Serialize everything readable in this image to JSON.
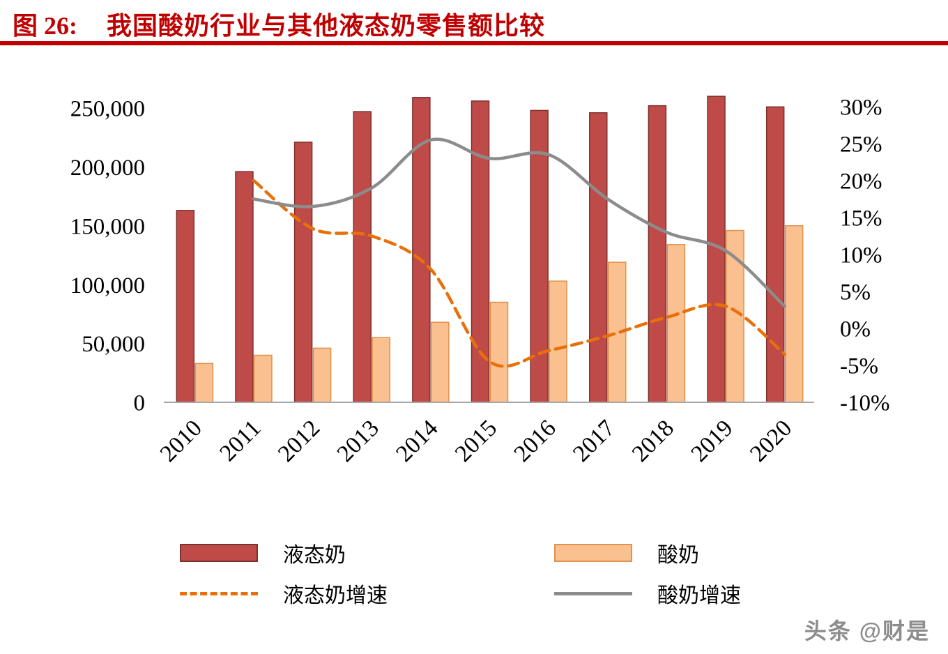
{
  "header": {
    "figure_label": "图 26:",
    "title": "我国酸奶行业与其他液态奶零售额比较"
  },
  "chart_data": {
    "type": "combo-bar-line",
    "title": "我国酸奶行业与其他液态奶零售额比较",
    "categories": [
      "2010",
      "2011",
      "2012",
      "2013",
      "2014",
      "2015",
      "2016",
      "2017",
      "2018",
      "2019",
      "2020"
    ],
    "left_axis": {
      "min": 0,
      "max": 250000,
      "tick_values": [
        0,
        50000,
        100000,
        150000,
        200000,
        250000
      ],
      "tick_labels": [
        "0",
        "50,000",
        "100,000",
        "150,000",
        "200,000",
        "250,000"
      ]
    },
    "right_axis": {
      "min": -10,
      "max": 30,
      "tick_values": [
        -10,
        -5,
        0,
        5,
        10,
        15,
        20,
        25,
        30
      ],
      "tick_labels": [
        "-10%",
        "-5%",
        "0%",
        "5%",
        "10%",
        "15%",
        "20%",
        "25%",
        "30%"
      ]
    },
    "bar_series": [
      {
        "name": "液态奶",
        "axis": "left",
        "color": "#BE4B48",
        "border_color": "#7E302C",
        "values": [
          163000,
          196000,
          221000,
          247000,
          259000,
          256000,
          248000,
          246000,
          252000,
          260000,
          251000
        ]
      },
      {
        "name": "酸奶",
        "axis": "left",
        "color": "#FAC090",
        "border_color": "#E0924F",
        "values": [
          33000,
          40000,
          46000,
          55000,
          68000,
          85000,
          103000,
          119000,
          134000,
          146000,
          150000
        ]
      }
    ],
    "line_series": [
      {
        "name": "液态奶增速",
        "axis": "right",
        "style": "dashed",
        "color": "#E8700A",
        "values": [
          null,
          20,
          13.5,
          12.5,
          8,
          -4.5,
          -3,
          -1,
          1.5,
          3,
          -3.5
        ]
      },
      {
        "name": "酸奶增速",
        "axis": "right",
        "style": "solid",
        "color": "#8C8C8C",
        "values": [
          null,
          17.5,
          16.5,
          19,
          25.5,
          23,
          23.5,
          17.5,
          13,
          10.5,
          3
        ]
      }
    ],
    "grid": false,
    "legend_position": "bottom"
  },
  "watermark": "头条 @财是",
  "colors": {
    "title_red": "#C00000",
    "axis_line": "#A6A6A6",
    "watermark_gray": "#8C8C8C"
  }
}
